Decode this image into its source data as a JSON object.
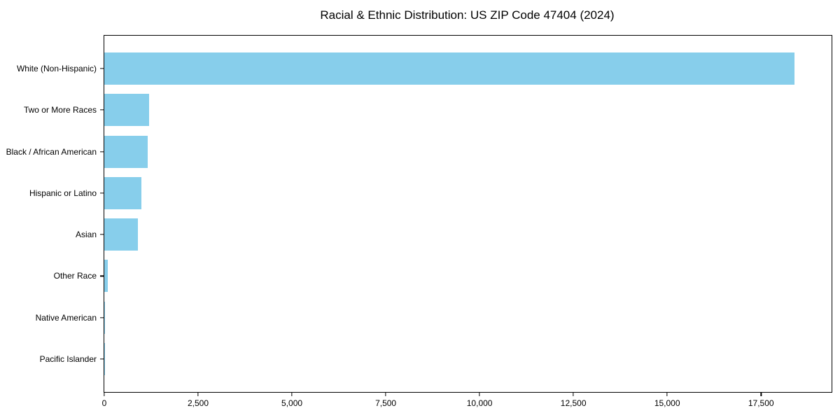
{
  "chart_data": {
    "type": "bar",
    "orientation": "horizontal",
    "title": "Racial & Ethnic Distribution: US ZIP Code 47404 (2024)",
    "xlabel": "",
    "ylabel": "",
    "categories": [
      "White (Non-Hispanic)",
      "Two or More Races",
      "Black / African American",
      "Hispanic or Latino",
      "Asian",
      "Other Race",
      "Native American",
      "Pacific Islander"
    ],
    "values": [
      18400,
      1190,
      1150,
      980,
      890,
      90,
      20,
      10
    ],
    "xlim": [
      0,
      19380
    ],
    "x_ticks": [
      0,
      2500,
      5000,
      7500,
      10000,
      12500,
      15000,
      17500
    ],
    "x_tick_labels": [
      "0",
      "2,500",
      "5,000",
      "7,500",
      "10,000",
      "12,500",
      "15,000",
      "17,500"
    ],
    "grid": false,
    "legend": null,
    "bar_color": "#87CEEB",
    "axis_color": "#000000",
    "background_color": "#ffffff"
  }
}
